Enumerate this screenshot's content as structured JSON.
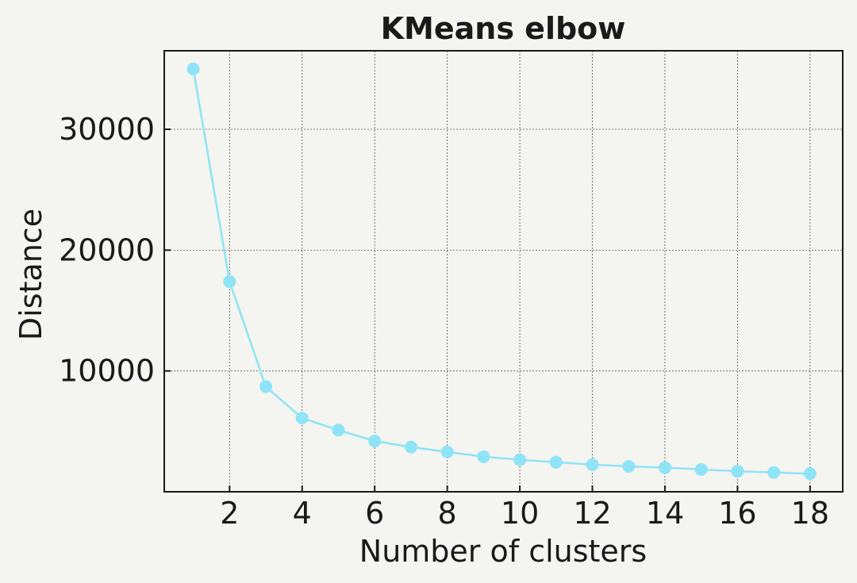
{
  "chart_data": {
    "type": "line",
    "title": "KMeans elbow",
    "xlabel": "Number of clusters",
    "ylabel": "Distance",
    "xlim": [
      0.2,
      18.9
    ],
    "ylim": [
      0,
      36500
    ],
    "xticks": [
      2,
      4,
      6,
      8,
      10,
      12,
      14,
      16,
      18
    ],
    "xtick_labels": [
      "2",
      "4",
      "6",
      "8",
      "10",
      "12",
      "14",
      "16",
      "18"
    ],
    "yticks": [
      10000,
      20000,
      30000
    ],
    "ytick_labels": [
      "10000",
      "20000",
      "30000"
    ],
    "grid": true,
    "series": [
      {
        "color": "#8ee4f6",
        "marker": "circle",
        "x": [
          1,
          2,
          3,
          4,
          5,
          6,
          7,
          8,
          9,
          10,
          11,
          12,
          13,
          14,
          15,
          16,
          17,
          18
        ],
        "y": [
          35000,
          17400,
          8700,
          6100,
          5100,
          4200,
          3700,
          3300,
          2900,
          2650,
          2450,
          2250,
          2100,
          2000,
          1850,
          1700,
          1600,
          1500
        ]
      }
    ]
  }
}
